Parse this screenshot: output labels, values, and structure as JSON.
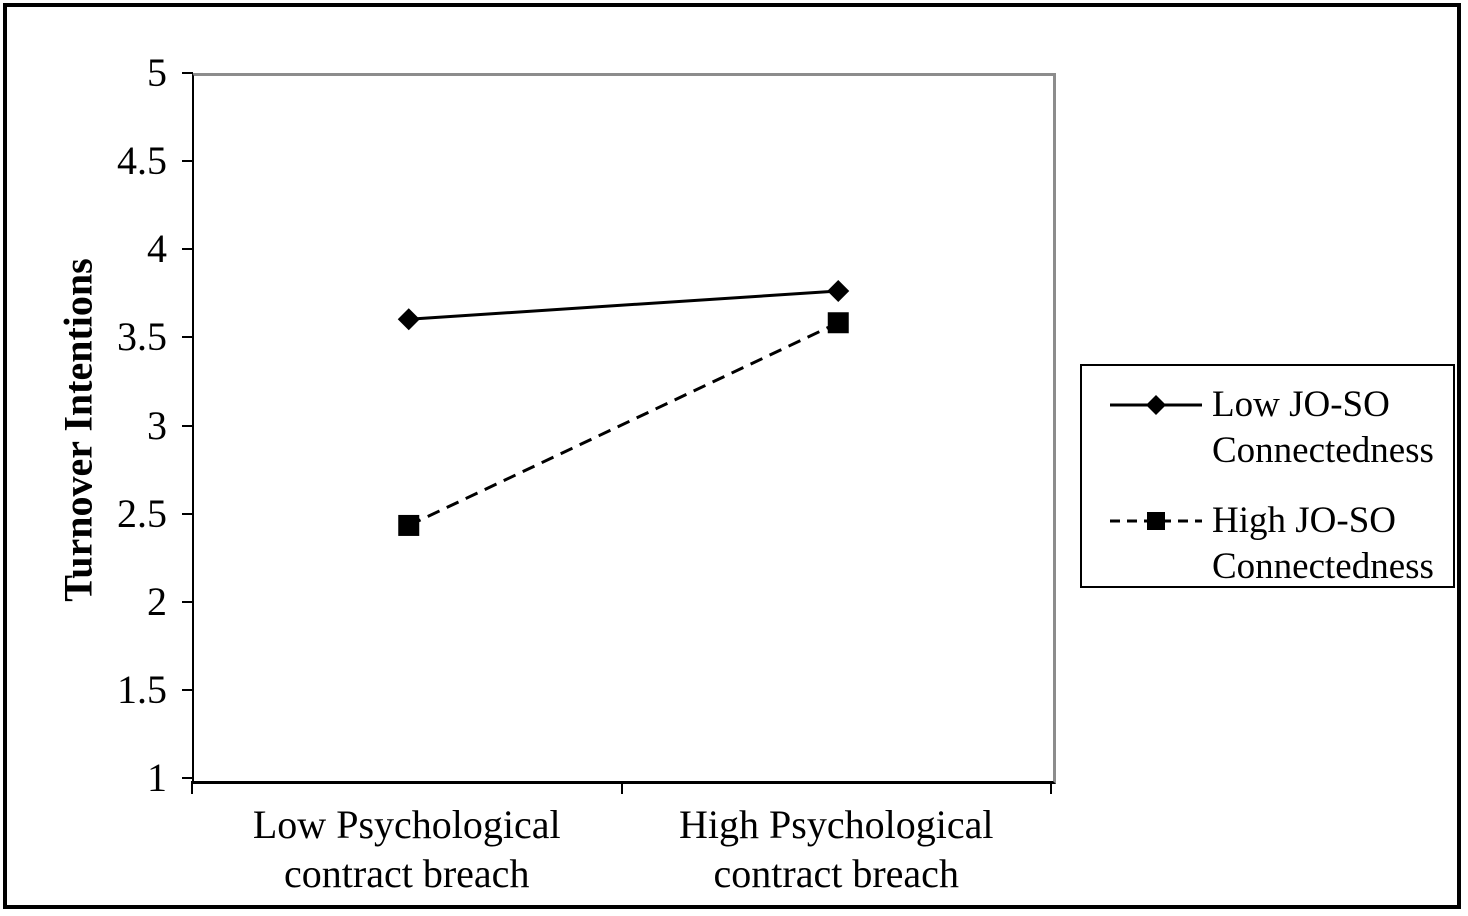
{
  "chart_data": {
    "type": "line",
    "title": "",
    "xlabel": "",
    "ylabel": "Turnover Intentions",
    "categories": [
      "Low Psychological\ncontract breach",
      "High Psychological\ncontract breach"
    ],
    "series": [
      {
        "name": "Low JO-SO\nConnectedness",
        "values": [
          3.62,
          3.78
        ],
        "line_style": "solid",
        "marker": "diamond",
        "color": "#000000"
      },
      {
        "name": "High JO-SO\nConnectedness",
        "values": [
          2.45,
          3.6
        ],
        "line_style": "dashed",
        "marker": "square",
        "color": "#000000"
      }
    ],
    "ylim": [
      1,
      5
    ],
    "yticks": [
      "1",
      "1.5",
      "2",
      "2.5",
      "3",
      "3.5",
      "4",
      "4.5",
      "5"
    ],
    "grid": false,
    "legend_position": "right-center",
    "plot_border_color": "#8c8c8c",
    "axis_color": "#000000",
    "background_color": "#ffffff"
  }
}
